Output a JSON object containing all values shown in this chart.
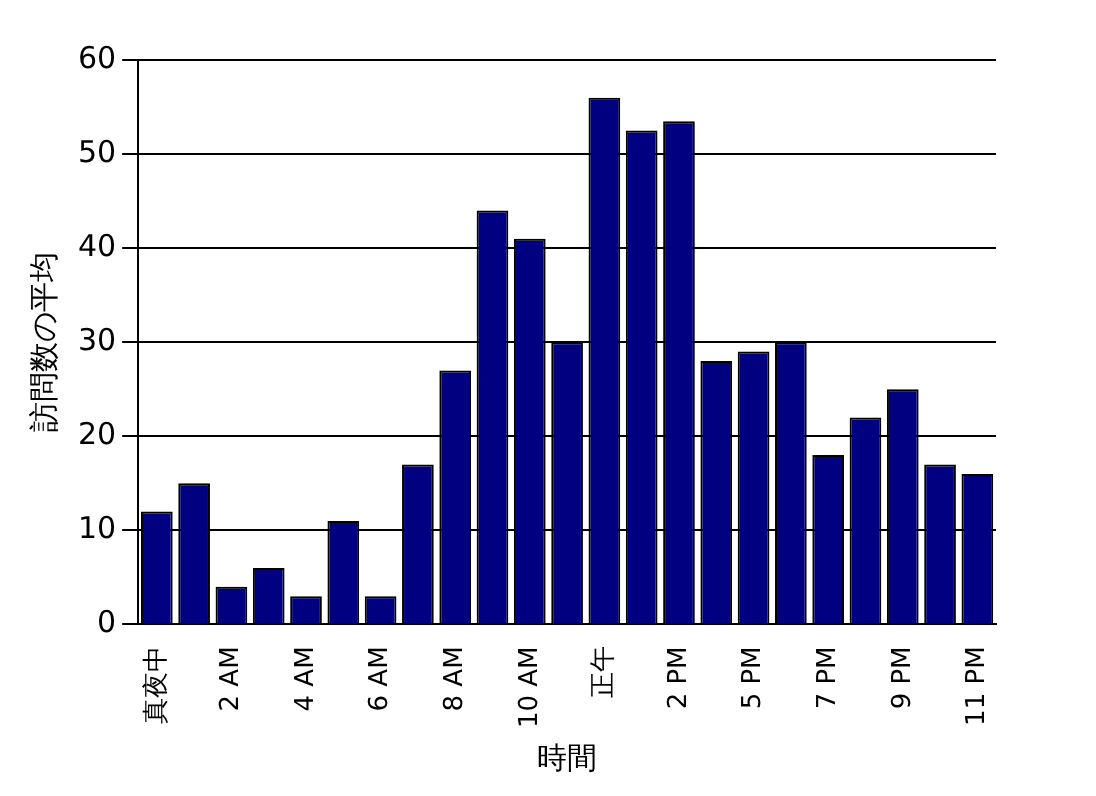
{
  "chart_data": {
    "type": "bar",
    "xlabel": "時間",
    "ylabel": "訪問数の平均",
    "categories": [
      "真夜中",
      null,
      "2 AM",
      null,
      "4 AM",
      null,
      "6 AM",
      null,
      "8 AM",
      null,
      "10 AM",
      null,
      "正午",
      null,
      "2 PM",
      null,
      "5 PM",
      null,
      "7 PM",
      null,
      "9 PM",
      null,
      "11 PM"
    ],
    "values": [
      12,
      15,
      4,
      6,
      3,
      11,
      3,
      17,
      27,
      44,
      41,
      30,
      56,
      52.5,
      53.5,
      28,
      29,
      30,
      18,
      22,
      25,
      17,
      16
    ],
    "color": "#000080",
    "ylim": [
      0,
      60
    ],
    "yticks": [
      0,
      10,
      20,
      30,
      40,
      50,
      60
    ],
    "grid": "y",
    "legend": false
  }
}
